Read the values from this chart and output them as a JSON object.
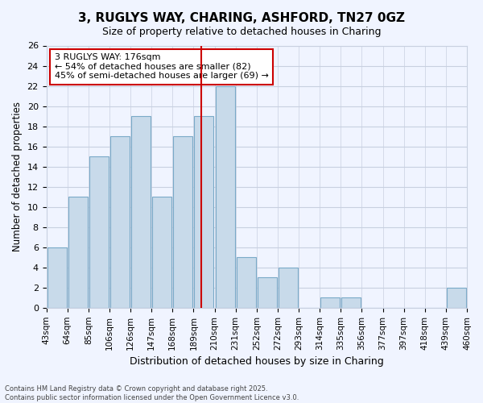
{
  "title": "3, RUGLYS WAY, CHARING, ASHFORD, TN27 0GZ",
  "subtitle": "Size of property relative to detached houses in Charing",
  "xlabel": "Distribution of detached houses by size in Charing",
  "ylabel": "Number of detached properties",
  "bar_color": "#c8daea",
  "bar_edge_color": "#7aaac8",
  "bin_labels": [
    "43sqm",
    "64sqm",
    "85sqm",
    "106sqm",
    "126sqm",
    "147sqm",
    "168sqm",
    "189sqm",
    "210sqm",
    "231sqm",
    "252sqm",
    "272sqm",
    "293sqm",
    "314sqm",
    "335sqm",
    "356sqm",
    "377sqm",
    "397sqm",
    "418sqm",
    "439sqm",
    "460sqm"
  ],
  "bar_values": [
    6,
    11,
    15,
    17,
    19,
    11,
    17,
    19,
    22,
    5,
    3,
    4,
    0,
    1,
    1,
    0,
    0,
    0,
    0,
    2
  ],
  "vline_x": 6.85,
  "vline_color": "#cc0000",
  "ylim": [
    0,
    26
  ],
  "yticks": [
    0,
    2,
    4,
    6,
    8,
    10,
    12,
    14,
    16,
    18,
    20,
    22,
    24,
    26
  ],
  "annotation_title": "3 RUGLYS WAY: 176sqm",
  "annotation_line1": "← 54% of detached houses are smaller (82)",
  "annotation_line2": "45% of semi-detached houses are larger (69) →",
  "footer_line1": "Contains HM Land Registry data © Crown copyright and database right 2025.",
  "footer_line2": "Contains public sector information licensed under the Open Government Licence v3.0.",
  "background_color": "#f0f4ff",
  "grid_color": "#c8d0e0"
}
